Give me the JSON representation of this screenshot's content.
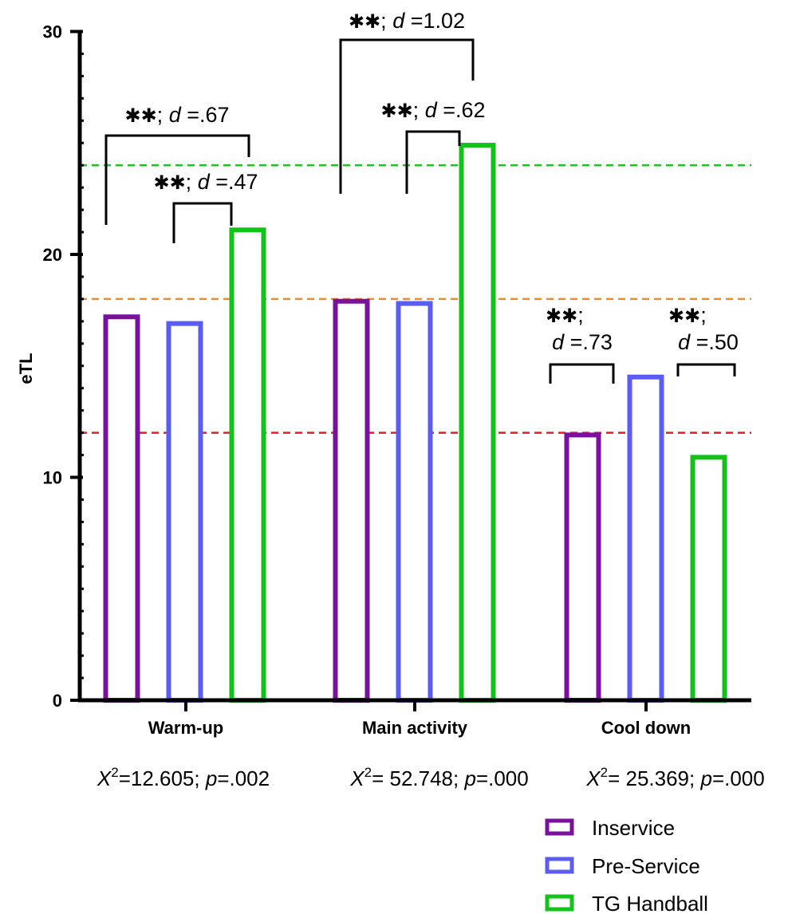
{
  "chart_data": {
    "type": "bar",
    "ylabel": "eTL",
    "ylim": [
      0,
      30
    ],
    "yticks": [
      "0",
      "10",
      "20",
      "30"
    ],
    "categories": [
      "Warm-up",
      "Main activity",
      "Cool down"
    ],
    "series": [
      {
        "name": "Inservice",
        "color": "#7a0fa0",
        "values": [
          17.2,
          17.9,
          11.9
        ]
      },
      {
        "name": "Pre-Service",
        "color": "#5b5bf5",
        "values": [
          16.9,
          17.8,
          14.5
        ]
      },
      {
        "name": "TG Handball",
        "color": "#12c41a",
        "values": [
          21.1,
          24.9,
          10.9
        ]
      }
    ],
    "reference_lines": [
      {
        "value": 24,
        "color": "#22c422",
        "style": "dashed"
      },
      {
        "value": 18,
        "color": "#f08a24",
        "style": "dashed"
      },
      {
        "value": 12,
        "color": "#e02020",
        "style": "dashed"
      }
    ],
    "category_stats": [
      {
        "chi_prefix": "X",
        "chi_sup": "2",
        "chi_value": "=12.605; ",
        "p_label": "p",
        "p_value": "=.002"
      },
      {
        "chi_prefix": "X",
        "chi_sup": "2",
        "chi_value": "= 52.748; ",
        "p_label": "p",
        "p_value": "=.000"
      },
      {
        "chi_prefix": "X",
        "chi_sup": "2",
        "chi_value": "= 25.369; ",
        "p_label": "p",
        "p_value": "=.000"
      }
    ],
    "significance": [
      {
        "category": 0,
        "from": 0,
        "to": 2,
        "stars": "✱✱",
        "sep": "; ",
        "d_label": "d",
        "d_value": " =.67"
      },
      {
        "category": 0,
        "from": 1,
        "to": 2,
        "stars": "✱✱",
        "sep": "; ",
        "d_label": "d",
        "d_value": " =.47"
      },
      {
        "category": 1,
        "from": 0,
        "to": 2,
        "stars": "✱✱",
        "sep": "; ",
        "d_label": "d",
        "d_value": " =1.02"
      },
      {
        "category": 1,
        "from": 1,
        "to": 2,
        "stars": "✱✱",
        "sep": "; ",
        "d_label": "d",
        "d_value": " =.62"
      },
      {
        "category": 2,
        "from": 0,
        "to": 1,
        "stars": "✱✱",
        "sep": ";",
        "d_label": "d",
        "d_value": " =.73"
      },
      {
        "category": 2,
        "from": 2,
        "to": 2,
        "stars": "✱✱",
        "sep": ";",
        "d_label": "d",
        "d_value": " =.50"
      }
    ],
    "grid": false,
    "legend_position": "bottom-right"
  }
}
